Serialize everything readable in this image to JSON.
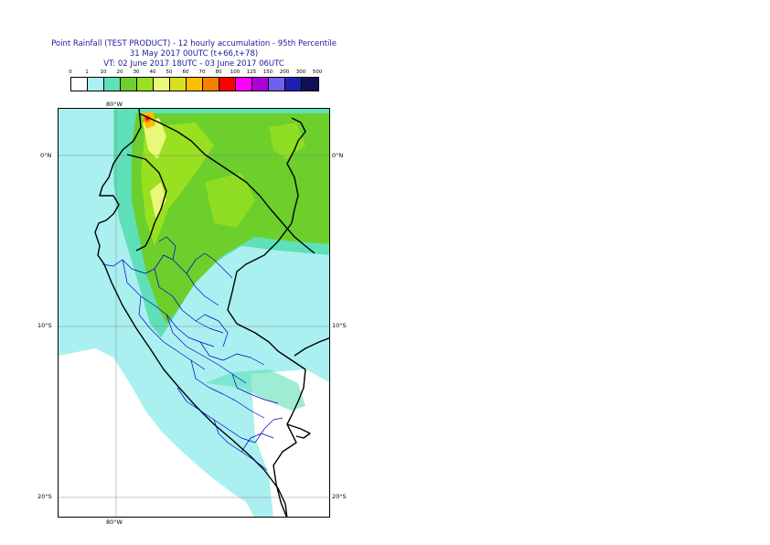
{
  "title": {
    "line1": "Point Rainfall (TEST PRODUCT) - 12 hourly accumulation - 95th Percentile",
    "line2": "31 May 2017 00UTC (t+66,t+78)",
    "line3": "VT: 02 June 2017 18UTC - 03 June 2017 06UTC"
  },
  "legend": {
    "labels": [
      "0",
      "1",
      "10",
      "20",
      "30",
      "40",
      "50",
      "60",
      "70",
      "80",
      "100",
      "125",
      "150",
      "200",
      "300",
      "500"
    ],
    "colors": [
      "#ffffff",
      "#aaf0f0",
      "#5fe0b8",
      "#6ccf2c",
      "#99e020",
      "#e8f878",
      "#d8e020",
      "#f8c000",
      "#f88000",
      "#ff0000",
      "#ff00ff",
      "#b000d8",
      "#7060f0",
      "#2020b0",
      "#101058"
    ]
  },
  "axes": {
    "lon_top": "80°W",
    "lon_bottom": "80°W",
    "lat_left": [
      "0°N",
      "10°S",
      "20°S"
    ],
    "lat_right": [
      "0°N",
      "10°S",
      "20°S"
    ]
  },
  "colors": {
    "title_text": "#1a1a9a",
    "coast": "#000000",
    "admin": "#0000cc"
  }
}
